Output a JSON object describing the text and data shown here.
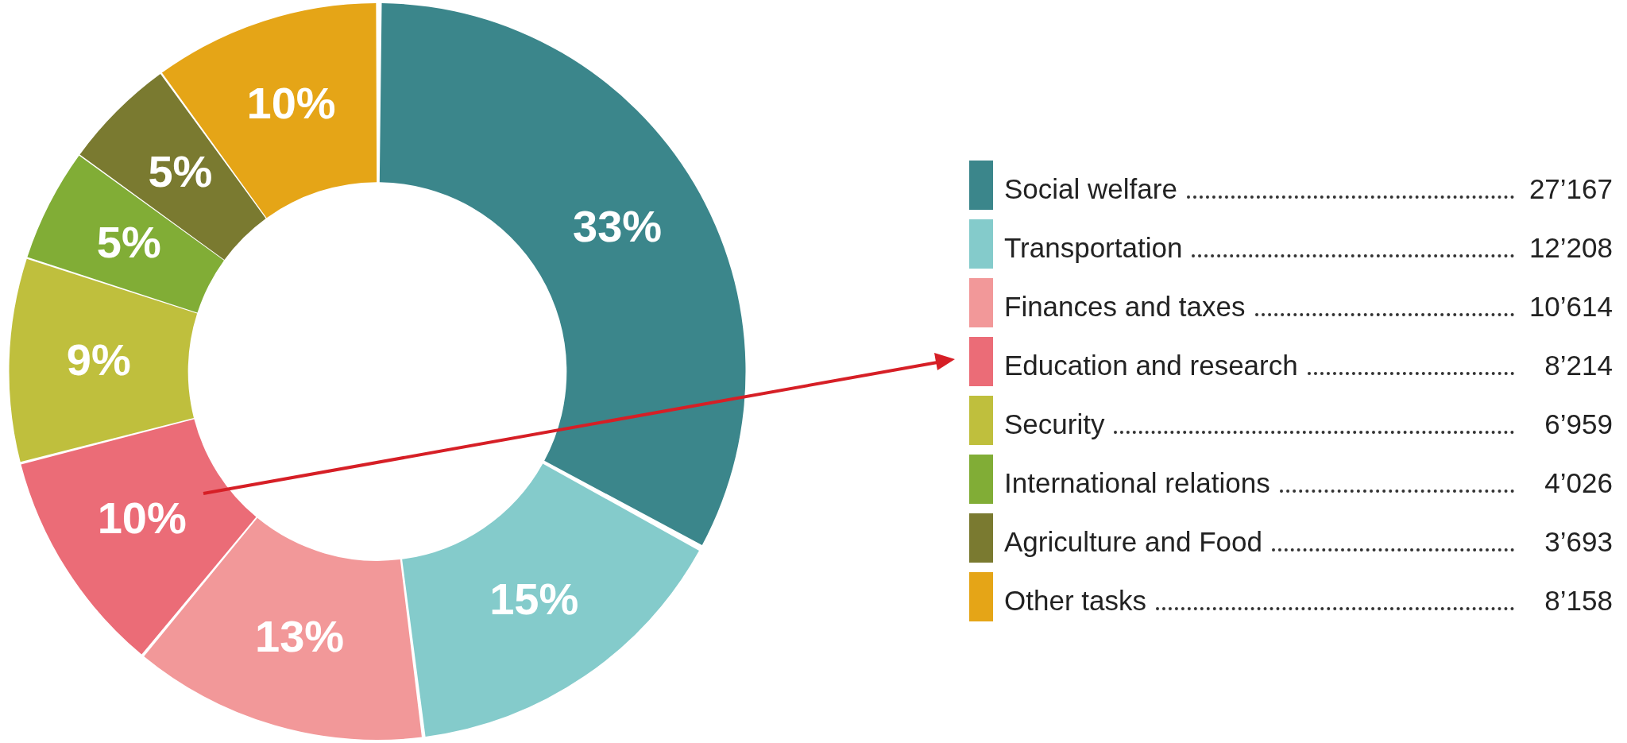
{
  "chart_data": {
    "type": "donut",
    "categories": [
      "Social welfare",
      "Transportation",
      "Finances and taxes",
      "Education and research",
      "Security",
      "International relations",
      "Agriculture and Food",
      "Other tasks"
    ],
    "values": [
      33,
      15,
      13,
      10,
      9,
      5,
      5,
      10
    ],
    "value_labels": [
      "33%",
      "15%",
      "13%",
      "10%",
      "9%",
      "5%",
      "5%",
      "10%"
    ],
    "colors": [
      "#3b868b",
      "#84cbcb",
      "#f29899",
      "#eb6c77",
      "#bfbf3d",
      "#81ad36",
      "#7a7a30",
      "#e5a517"
    ],
    "legend": "right",
    "annotations": [
      "27’167",
      "12’208",
      "10’614",
      "8’214",
      "6’959",
      "4’026",
      "3’693",
      "8’158"
    ]
  }
}
